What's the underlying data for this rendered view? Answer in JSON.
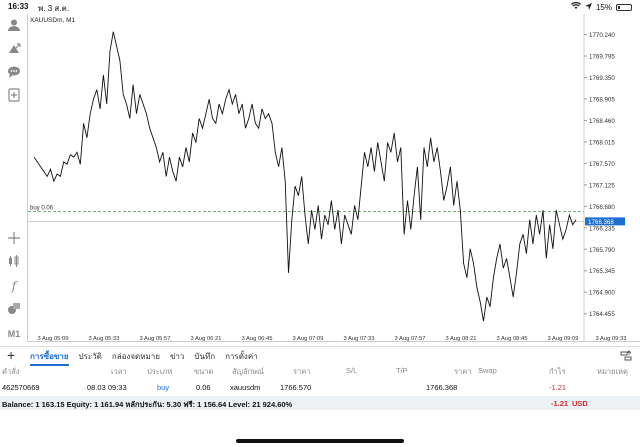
{
  "status": {
    "time": "16:33",
    "date": "พ. 3 ส.ค.",
    "battery": "15%"
  },
  "chart": {
    "symbol_label": "XAUUSDm, M1",
    "buy_label": "buy 0.06",
    "current_price": "1766.368",
    "colors": {
      "line": "#111111",
      "buy_line": "#3aa44a",
      "price_tag": "#1f6fd1",
      "grid": "#e8e8e8"
    }
  },
  "chart_data": {
    "type": "line",
    "title": "XAUUSDm, M1",
    "xlabel": "",
    "ylabel": "",
    "x_ticks": [
      "3 Aug 05:09",
      "3 Aug 05:33",
      "3 Aug 05:57",
      "3 Aug 06:21",
      "3 Aug 06:45",
      "3 Aug 07:09",
      "3 Aug 07:33",
      "3 Aug 07:57",
      "3 Aug 08:21",
      "3 Aug 08:45",
      "3 Aug 09:09",
      "3 Aug 09:33"
    ],
    "y_ticks": [
      "1770.240",
      "1769.795",
      "1769.350",
      "1768.905",
      "1768.460",
      "1768.015",
      "1767.570",
      "1767.125",
      "1766.680",
      "1766.235",
      "1765.790",
      "1765.345",
      "1764.900",
      "1764.455"
    ],
    "ylim": [
      1764.2,
      1770.5
    ],
    "grid": false,
    "series": [
      {
        "values": [
          1767.7,
          1767.6,
          1767.5,
          1767.4,
          1767.3,
          1767.45,
          1767.2,
          1767.35,
          1767.3,
          1767.6,
          1767.55,
          1767.75,
          1767.7,
          1767.8,
          1767.55,
          1768.4,
          1768.1,
          1768.6,
          1768.9,
          1769.1,
          1768.7,
          1769.4,
          1768.8,
          1769.9,
          1770.3,
          1770.0,
          1769.7,
          1769.0,
          1768.8,
          1768.5,
          1769.2,
          1768.6,
          1769.0,
          1768.8,
          1768.6,
          1768.3,
          1768.1,
          1767.9,
          1767.6,
          1767.8,
          1767.3,
          1767.7,
          1767.4,
          1767.2,
          1767.7,
          1767.5,
          1767.9,
          1767.6,
          1768.2,
          1768.0,
          1768.5,
          1768.3,
          1768.6,
          1768.9,
          1768.5,
          1768.4,
          1768.8,
          1768.6,
          1768.9,
          1769.1,
          1768.8,
          1769.0,
          1768.6,
          1768.8,
          1768.3,
          1768.5,
          1768.8,
          1768.4,
          1768.3,
          1768.7,
          1768.5,
          1768.6,
          1768.4,
          1767.8,
          1767.5,
          1767.9,
          1767.2,
          1765.3,
          1766.4,
          1767.1,
          1766.9,
          1767.3,
          1766.5,
          1765.9,
          1766.6,
          1766.2,
          1766.7,
          1766.0,
          1766.5,
          1766.3,
          1766.8,
          1766.2,
          1766.6,
          1765.9,
          1766.5,
          1766.3,
          1766.1,
          1766.7,
          1766.4,
          1767.1,
          1767.8,
          1767.5,
          1767.9,
          1767.4,
          1768.0,
          1767.6,
          1767.2,
          1768.0,
          1767.8,
          1768.2,
          1767.6,
          1767.9,
          1766.1,
          1766.8,
          1766.2,
          1766.9,
          1767.5,
          1766.4,
          1767.9,
          1767.5,
          1768.1,
          1767.6,
          1767.9,
          1767.4,
          1766.8,
          1767.1,
          1767.5,
          1766.7,
          1767.2,
          1766.6,
          1765.5,
          1765.2,
          1765.8,
          1765.5,
          1765.0,
          1764.7,
          1764.3,
          1764.8,
          1764.6,
          1765.2,
          1765.6,
          1765.9,
          1765.4,
          1765.6,
          1765.2,
          1764.8,
          1765.3,
          1765.9,
          1766.1,
          1765.7,
          1766.4,
          1765.9,
          1766.5,
          1766.1,
          1766.6,
          1765.6,
          1766.3,
          1765.8,
          1766.6,
          1766.3,
          1766.0,
          1766.2,
          1766.5,
          1766.3,
          1766.4
        ]
      }
    ]
  },
  "tabs": [
    "การซื้อขาย",
    "ประวัติ",
    "กล่องจดหมาย",
    "ข่าว",
    "บันทึก",
    "การตั้งค่า"
  ],
  "table": {
    "headers": [
      "คำสั่ง",
      "เวลา",
      "ประเภท",
      "ขนาด",
      "สัญลักษณ์",
      "ราคา",
      "S/L",
      "T/P",
      "ราคา",
      "Swap",
      "กำไร",
      "หมายเหตุ"
    ],
    "row": [
      "462570669",
      "08.03 09:33",
      "buy",
      "0.06",
      "xauusdm",
      "1766.570",
      "",
      "",
      "1766.368",
      "",
      "-1.21",
      ""
    ]
  },
  "balance": {
    "text": "Balance: 1 163.15 Equity: 1 161.94 หลักประกัน: 5.30 ฟรี: 1 156.64 Level: 21 924.60%",
    "profit": "-1.21",
    "currency": "USD"
  }
}
